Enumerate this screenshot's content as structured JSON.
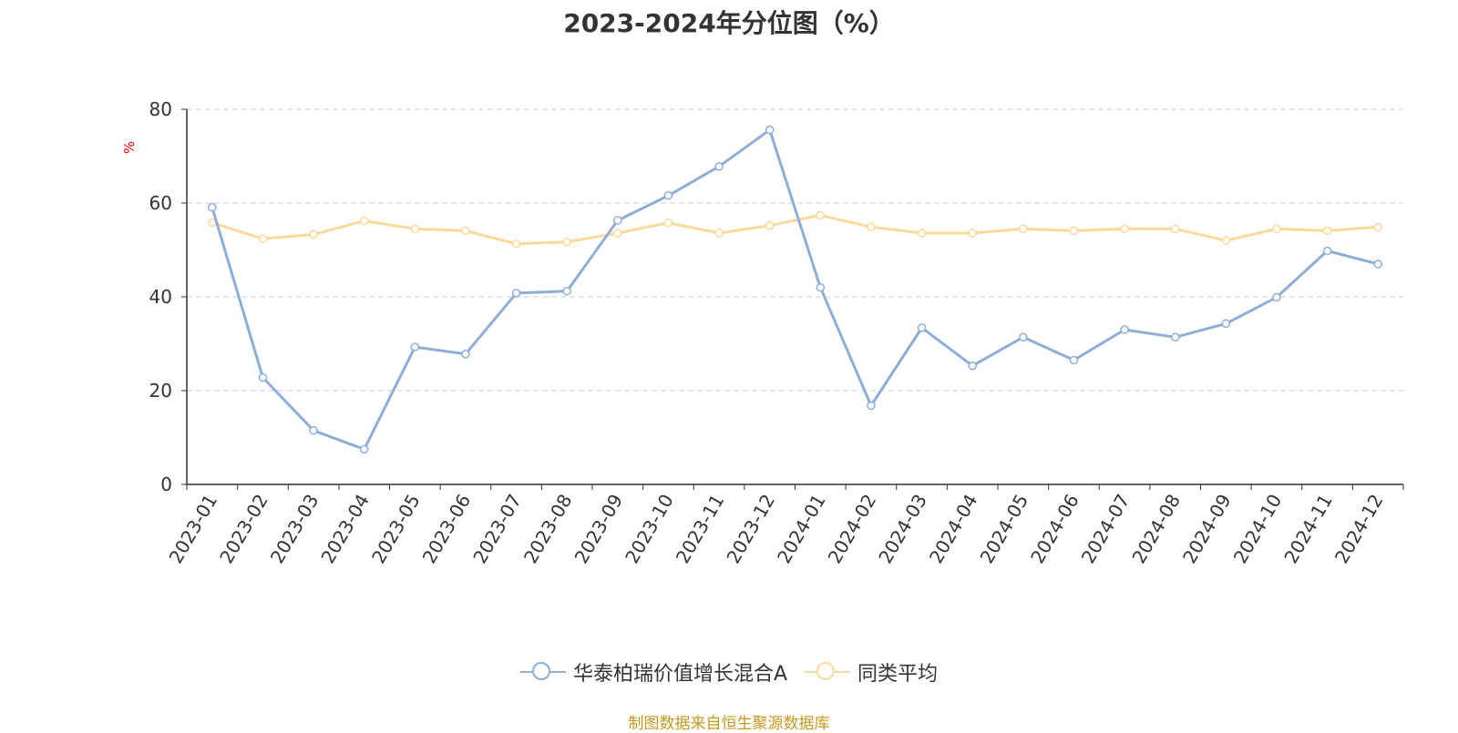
{
  "chart_data": {
    "type": "line",
    "title": "2023-2024年分位图（%）",
    "ylabel": "%",
    "xlabel": "",
    "ylim": [
      0,
      80
    ],
    "yticks": [
      0,
      20,
      40,
      60,
      80
    ],
    "grid": true,
    "legend_position": "bottom",
    "categories": [
      "2023-01",
      "2023-02",
      "2023-03",
      "2023-04",
      "2023-05",
      "2023-06",
      "2023-07",
      "2023-08",
      "2023-09",
      "2023-10",
      "2023-11",
      "2023-12",
      "2024-01",
      "2024-02",
      "2024-03",
      "2024-04",
      "2024-05",
      "2024-06",
      "2024-07",
      "2024-08",
      "2024-09",
      "2024-10",
      "2024-11",
      "2024-12"
    ],
    "series": [
      {
        "name": "华泰柏瑞价值增长混合A",
        "color": "#8eadd9",
        "values": [
          59.1,
          22.8,
          11.5,
          7.5,
          29.3,
          27.8,
          40.8,
          41.2,
          56.3,
          61.6,
          67.8,
          75.6,
          42.0,
          16.8,
          33.4,
          25.3,
          31.4,
          26.5,
          33.0,
          31.4,
          34.3,
          39.9,
          49.8,
          47.0
        ]
      },
      {
        "name": "同类平均",
        "color": "#fbd99a",
        "values": [
          55.8,
          52.4,
          53.3,
          56.2,
          54.5,
          54.1,
          51.3,
          51.7,
          53.6,
          55.8,
          53.6,
          55.2,
          57.4,
          54.9,
          53.6,
          53.6,
          54.5,
          54.1,
          54.5,
          54.5,
          52.0,
          54.5,
          54.1,
          54.9
        ]
      }
    ],
    "source": "制图数据来自恒生聚源数据库"
  },
  "colors": {
    "axis": "#333333",
    "grid": "#cccccc",
    "ylabel": "#ff0000",
    "source": "#c9981f"
  }
}
